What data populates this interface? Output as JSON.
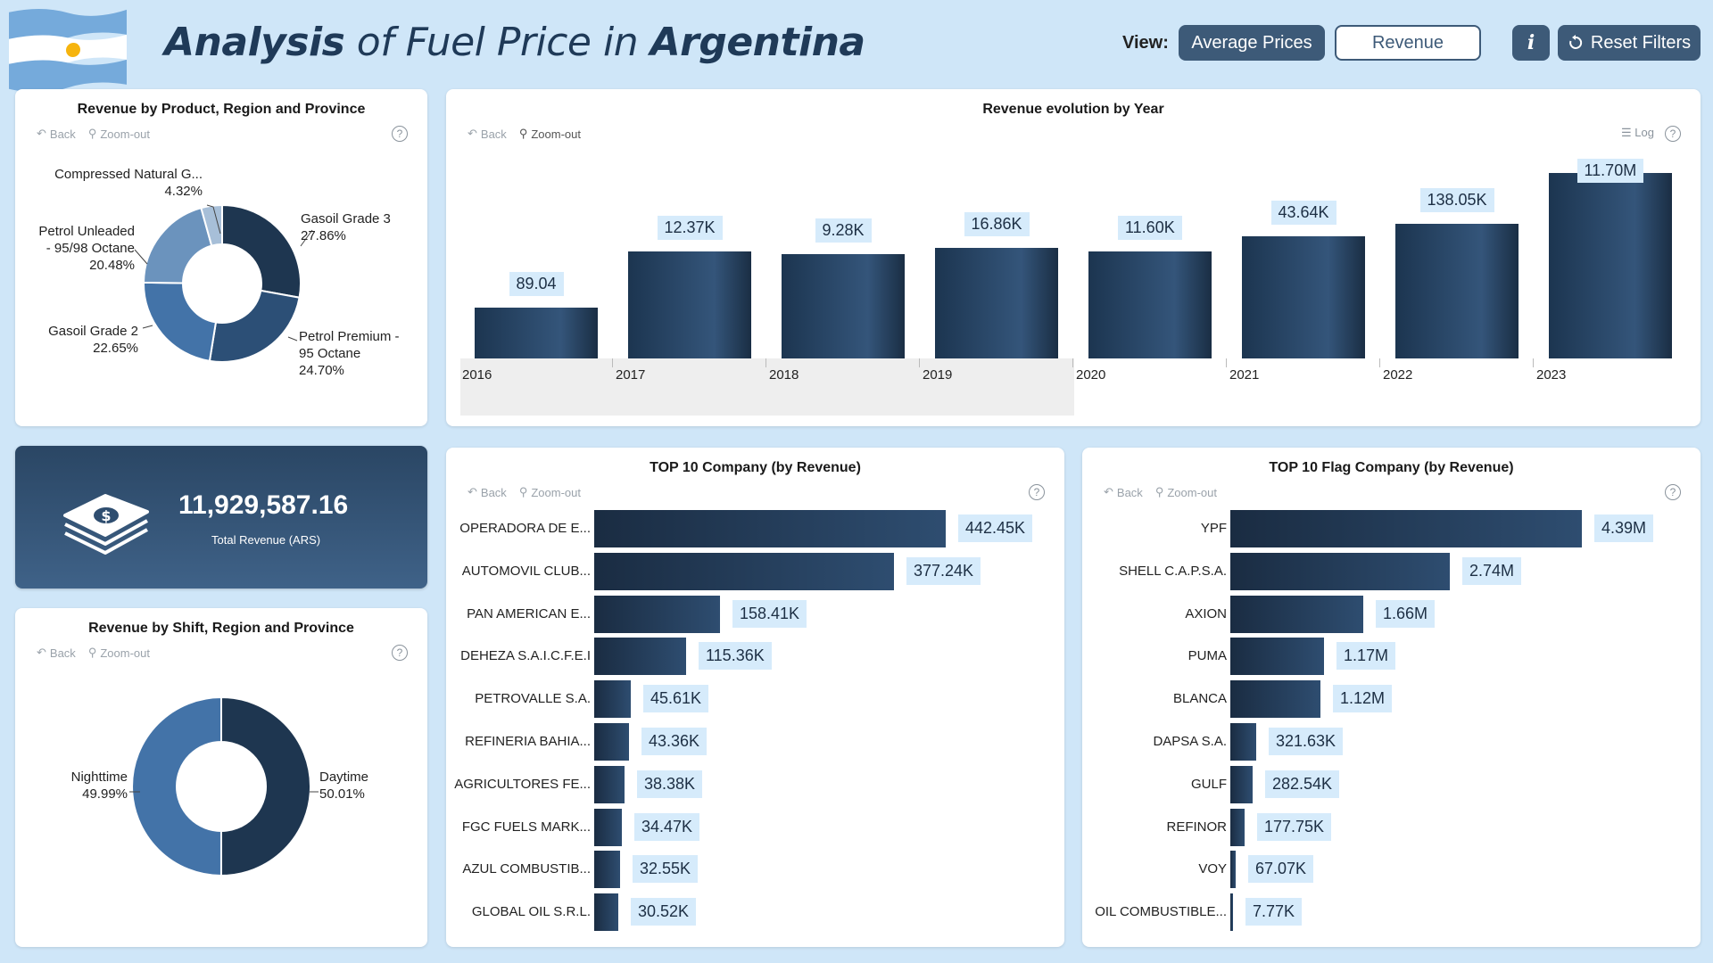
{
  "header": {
    "title_part1": "Analysis",
    "title_part2": " of Fuel Price in ",
    "title_part3": "Argentina",
    "view_label": "View:",
    "view_options": [
      "Average Prices",
      "Revenue"
    ],
    "info_label": "i",
    "reset_label": "Reset Filters"
  },
  "toolbar": {
    "back": "Back",
    "zoom_out": "Zoom-out",
    "help": "?",
    "log": "Log"
  },
  "colors": {
    "background": "#cfe6f8",
    "dark_navy": "#1f3a58",
    "accent": "#3d5a78",
    "label_bg": "#d6ebfb"
  },
  "product_chart": {
    "title": "Revenue by Product, Region and Province",
    "slices": [
      {
        "name": "Gasoil Grade 3",
        "pct": "27.86%",
        "value": 27.86,
        "color": "#1e3650"
      },
      {
        "name": "Petrol Premium - 95 Octane",
        "name_line1": "Petrol Premium -",
        "name_line2": "95 Octane",
        "pct": "24.70%",
        "value": 24.7,
        "color": "#2c4f76"
      },
      {
        "name": "Gasoil Grade 2",
        "pct": "22.65%",
        "value": 22.65,
        "color": "#4373a8"
      },
      {
        "name": "Petrol Unleaded - 95/98 Octane",
        "name_line1": "Petrol Unleaded",
        "name_line2": "- 95/98 Octane",
        "pct": "20.48%",
        "value": 20.48,
        "color": "#6b93bd"
      },
      {
        "name": "Compressed Natural G...",
        "pct": "4.32%",
        "value": 4.32,
        "color": "#a7bfd8"
      }
    ]
  },
  "kpi": {
    "value": "11,929,587.16",
    "label": "Total Revenue (ARS)",
    "icon": "money-stack-icon"
  },
  "shift_chart": {
    "title": "Revenue by Shift, Region and Province",
    "slices": [
      {
        "name": "Daytime",
        "pct": "50.01%",
        "value": 50.01,
        "color": "#1e3650"
      },
      {
        "name": "Nighttime",
        "pct": "49.99%",
        "value": 49.99,
        "color": "#4373a8"
      }
    ]
  },
  "chart_data": [
    {
      "type": "bar",
      "title": "Revenue evolution by Year",
      "categories": [
        "2016",
        "2017",
        "2018",
        "2019",
        "2020",
        "2021",
        "2022",
        "2023"
      ],
      "values": [
        89.04,
        12370,
        9280,
        16860,
        11600,
        43640,
        138050,
        11700000
      ],
      "data_labels": [
        "89.04",
        "12.37K",
        "9.28K",
        "16.86K",
        "11.60K",
        "43.64K",
        "138.05K",
        "11.70M"
      ],
      "yscale": "log"
    },
    {
      "type": "bar",
      "orientation": "horizontal",
      "title": "TOP 10 Company (by Revenue)",
      "categories": [
        "OPERADORA DE E...",
        "AUTOMOVIL CLUB...",
        "PAN AMERICAN E...",
        "DEHEZA S.A.I.C.F.E.I",
        "PETROVALLE S.A.",
        "REFINERIA BAHIA...",
        "AGRICULTORES FE...",
        "FGC FUELS MARK...",
        "AZUL COMBUSTIB...",
        "GLOBAL OIL S.R.L."
      ],
      "values": [
        442450,
        377240,
        158410,
        115360,
        45610,
        43360,
        38380,
        34470,
        32550,
        30520
      ],
      "data_labels": [
        "442.45K",
        "377.24K",
        "158.41K",
        "115.36K",
        "45.61K",
        "43.36K",
        "38.38K",
        "34.47K",
        "32.55K",
        "30.52K"
      ]
    },
    {
      "type": "bar",
      "orientation": "horizontal",
      "title": "TOP 10 Flag Company (by Revenue)",
      "categories": [
        "YPF",
        "SHELL C.A.P.S.A.",
        "AXION",
        "PUMA",
        "BLANCA",
        "DAPSA S.A.",
        "GULF",
        "REFINOR",
        "VOY",
        "OIL COMBUSTIBLE..."
      ],
      "values": [
        4390000,
        2740000,
        1660000,
        1170000,
        1120000,
        321630,
        282540,
        177750,
        67070,
        7770
      ],
      "data_labels": [
        "4.39M",
        "2.74M",
        "1.66M",
        "1.17M",
        "1.12M",
        "321.63K",
        "282.54K",
        "177.75K",
        "67.07K",
        "7.77K"
      ]
    }
  ]
}
